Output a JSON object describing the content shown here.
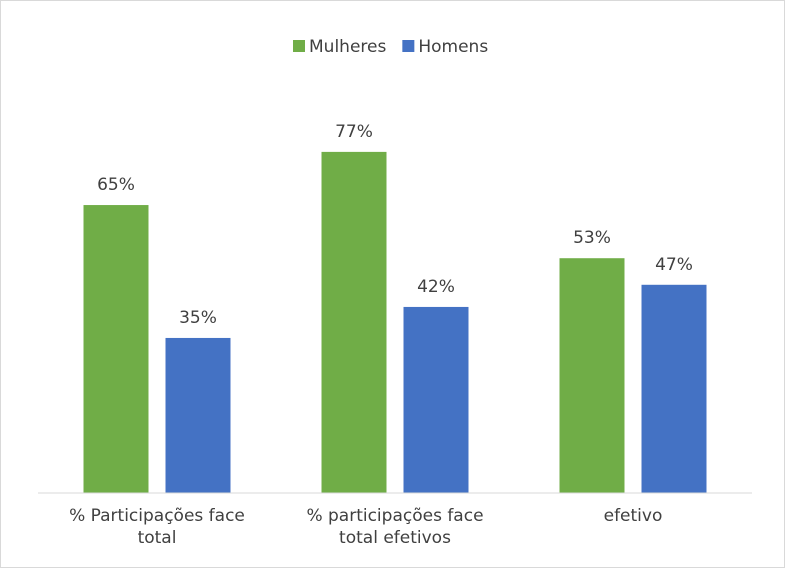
{
  "chart_data": {
    "type": "bar",
    "categories": [
      "% Participações face total",
      "% participações face total efetivos",
      "efetivo"
    ],
    "series": [
      {
        "name": "Mulheres",
        "color": "#70ad47",
        "values": [
          65,
          77,
          53
        ],
        "value_labels": [
          "65%",
          "77%",
          "53%"
        ]
      },
      {
        "name": "Homens",
        "color": "#4472c4",
        "values": [
          35,
          42,
          47
        ],
        "value_labels": [
          "35%",
          "42%",
          "47%"
        ]
      }
    ],
    "legend": "top"
  }
}
